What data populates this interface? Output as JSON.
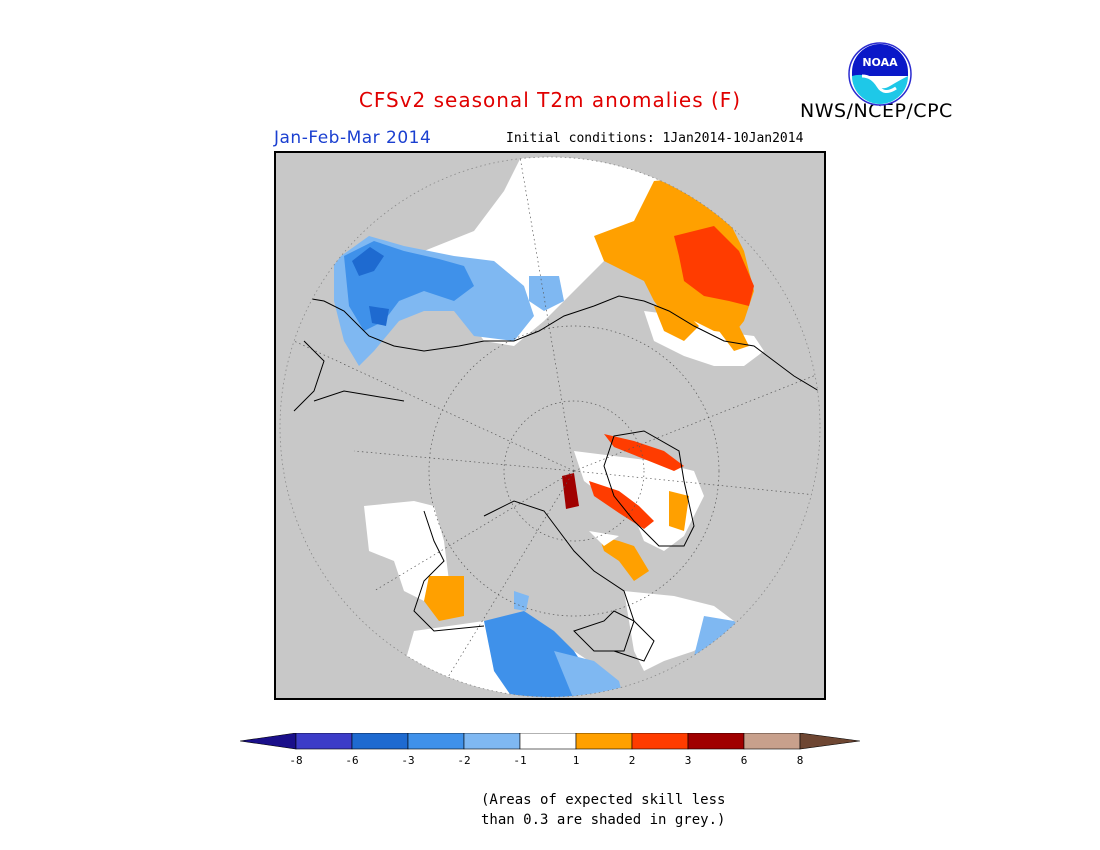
{
  "header": {
    "title": "CFSv2 seasonal T2m anomalies (F)",
    "agency": "NWS/NCEP/CPC",
    "season": "Jan-Feb-Mar 2014",
    "initial_conditions": "Initial conditions: 1Jan2014-10Jan2014",
    "logo_text": "NOAA"
  },
  "colorbar": {
    "ticks": [
      "-8",
      "-6",
      "-3",
      "-2",
      "-1",
      "1",
      "2",
      "3",
      "6",
      "8"
    ],
    "colors": [
      "#1a0f8a",
      "#3c3cc8",
      "#1e6ad0",
      "#3f91ea",
      "#7fb8f2",
      "#ffffff",
      "#ffa000",
      "#ff3c00",
      "#a00000",
      "#c8a08c",
      "#6e4632"
    ]
  },
  "map": {
    "background": "#c8c8c8",
    "colors": {
      "grey": "#c8c8c8",
      "white": "#ffffff",
      "light_blue": "#7fb8f2",
      "blue": "#3f91ea",
      "mid_blue": "#1e6ad0",
      "orange": "#ffa000",
      "red_orange": "#ff3c00",
      "dark_red": "#a00000"
    }
  },
  "note": {
    "line1": "(Areas of expected skill less",
    "line2": "than 0.3 are shaded in grey.)"
  }
}
